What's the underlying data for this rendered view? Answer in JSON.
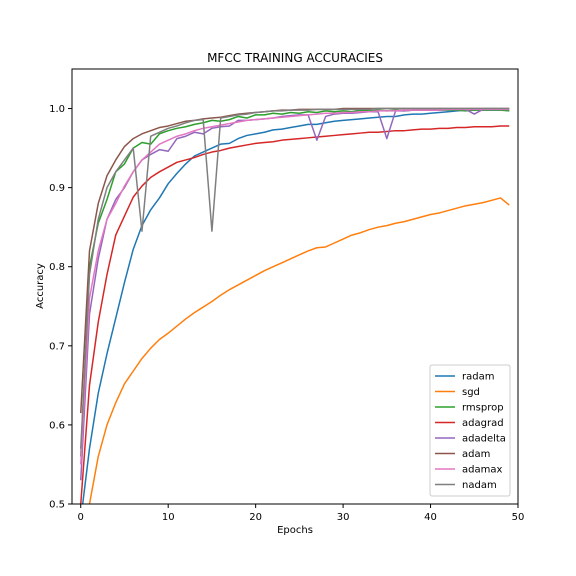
{
  "chart_data": {
    "type": "line",
    "title": "MFCC TRAINING ACCURACIES",
    "xlabel": "Epochs",
    "ylabel": "Accuracy",
    "xlim": [
      -1,
      50
    ],
    "ylim": [
      0.5,
      1.05
    ],
    "xticks": [
      0,
      10,
      20,
      30,
      40,
      50
    ],
    "yticks": [
      0.5,
      0.6,
      0.7,
      0.8,
      0.9,
      1.0
    ],
    "grid": false,
    "legend_position": "bottom-right",
    "series": [
      {
        "name": "radam",
        "color": "#1f77b4",
        "x": [
          0,
          1,
          2,
          3,
          4,
          5,
          6,
          7,
          8,
          9,
          10,
          11,
          12,
          13,
          14,
          15,
          16,
          17,
          18,
          19,
          20,
          21,
          22,
          23,
          24,
          25,
          26,
          27,
          28,
          29,
          30,
          31,
          32,
          33,
          34,
          35,
          36,
          37,
          38,
          39,
          40,
          41,
          42,
          43,
          44,
          45,
          46,
          47,
          48,
          49
        ],
        "values": [
          0.48,
          0.57,
          0.64,
          0.69,
          0.735,
          0.78,
          0.822,
          0.852,
          0.872,
          0.887,
          0.905,
          0.918,
          0.93,
          0.94,
          0.945,
          0.95,
          0.955,
          0.956,
          0.962,
          0.966,
          0.968,
          0.97,
          0.973,
          0.974,
          0.976,
          0.978,
          0.98,
          0.98,
          0.982,
          0.984,
          0.985,
          0.986,
          0.987,
          0.988,
          0.989,
          0.99,
          0.99,
          0.992,
          0.993,
          0.993,
          0.994,
          0.995,
          0.996,
          0.997,
          0.998,
          0.998,
          0.998,
          0.998,
          0.998,
          0.998
        ]
      },
      {
        "name": "sgd",
        "color": "#ff7f0e",
        "x": [
          0,
          1,
          2,
          3,
          4,
          5,
          6,
          7,
          8,
          9,
          10,
          11,
          12,
          13,
          14,
          15,
          16,
          17,
          18,
          19,
          20,
          21,
          22,
          23,
          24,
          25,
          26,
          27,
          28,
          29,
          30,
          31,
          32,
          33,
          34,
          35,
          36,
          37,
          38,
          39,
          40,
          41,
          42,
          43,
          44,
          45,
          46,
          47,
          48,
          49
        ],
        "values": [
          0.43,
          0.5,
          0.56,
          0.6,
          0.628,
          0.652,
          0.668,
          0.684,
          0.697,
          0.708,
          0.716,
          0.725,
          0.734,
          0.742,
          0.749,
          0.756,
          0.764,
          0.771,
          0.777,
          0.783,
          0.789,
          0.795,
          0.8,
          0.805,
          0.81,
          0.815,
          0.82,
          0.824,
          0.825,
          0.83,
          0.835,
          0.84,
          0.843,
          0.847,
          0.85,
          0.852,
          0.855,
          0.857,
          0.86,
          0.863,
          0.866,
          0.868,
          0.871,
          0.874,
          0.877,
          0.879,
          0.881,
          0.884,
          0.887,
          0.878
        ]
      },
      {
        "name": "rmsprop",
        "color": "#2ca02c",
        "x": [
          0,
          1,
          2,
          3,
          4,
          5,
          6,
          7,
          8,
          9,
          10,
          11,
          12,
          13,
          14,
          15,
          16,
          17,
          18,
          19,
          20,
          21,
          22,
          23,
          24,
          25,
          26,
          27,
          28,
          29,
          30,
          31,
          32,
          33,
          34,
          35,
          36,
          37,
          38,
          39,
          40,
          41,
          42,
          43,
          44,
          45,
          46,
          47,
          48,
          49
        ],
        "values": [
          0.56,
          0.8,
          0.855,
          0.885,
          0.92,
          0.93,
          0.95,
          0.957,
          0.955,
          0.968,
          0.972,
          0.975,
          0.977,
          0.98,
          0.982,
          0.985,
          0.984,
          0.986,
          0.99,
          0.988,
          0.992,
          0.992,
          0.994,
          0.993,
          0.995,
          0.994,
          0.996,
          0.995,
          0.997,
          0.996,
          0.997,
          0.996,
          0.998,
          0.997,
          0.998,
          0.997,
          0.998,
          0.997,
          0.998,
          0.998,
          0.998,
          0.998,
          0.998,
          0.998,
          0.997,
          0.998,
          0.998,
          0.998,
          0.998,
          0.997
        ]
      },
      {
        "name": "adagrad",
        "color": "#d62728",
        "x": [
          0,
          1,
          2,
          3,
          4,
          5,
          6,
          7,
          8,
          9,
          10,
          11,
          12,
          13,
          14,
          15,
          16,
          17,
          18,
          19,
          20,
          21,
          22,
          23,
          24,
          25,
          26,
          27,
          28,
          29,
          30,
          31,
          32,
          33,
          34,
          35,
          36,
          37,
          38,
          39,
          40,
          41,
          42,
          43,
          44,
          45,
          46,
          47,
          48,
          49
        ],
        "values": [
          0.5,
          0.65,
          0.73,
          0.79,
          0.84,
          0.864,
          0.888,
          0.902,
          0.913,
          0.92,
          0.926,
          0.932,
          0.935,
          0.938,
          0.942,
          0.945,
          0.947,
          0.95,
          0.952,
          0.954,
          0.956,
          0.957,
          0.958,
          0.96,
          0.961,
          0.962,
          0.963,
          0.964,
          0.965,
          0.966,
          0.967,
          0.968,
          0.969,
          0.97,
          0.97,
          0.971,
          0.972,
          0.972,
          0.973,
          0.974,
          0.974,
          0.975,
          0.975,
          0.976,
          0.976,
          0.977,
          0.977,
          0.977,
          0.978,
          0.978
        ]
      },
      {
        "name": "adadelta",
        "color": "#9467bd",
        "x": [
          0,
          1,
          2,
          3,
          4,
          5,
          6,
          7,
          8,
          9,
          10,
          11,
          12,
          13,
          14,
          15,
          16,
          17,
          18,
          19,
          20,
          21,
          22,
          23,
          24,
          25,
          26,
          27,
          28,
          29,
          30,
          31,
          32,
          33,
          34,
          35,
          36,
          37,
          38,
          39,
          40,
          41,
          42,
          43,
          44,
          45,
          46,
          47,
          48,
          49
        ],
        "values": [
          0.53,
          0.74,
          0.81,
          0.86,
          0.885,
          0.9,
          0.92,
          0.935,
          0.942,
          0.948,
          0.946,
          0.962,
          0.965,
          0.97,
          0.968,
          0.975,
          0.977,
          0.978,
          0.985,
          0.985,
          0.986,
          0.987,
          0.988,
          0.99,
          0.991,
          0.992,
          0.992,
          0.96,
          0.99,
          0.993,
          0.994,
          0.994,
          0.995,
          0.996,
          0.996,
          0.962,
          0.997,
          0.997,
          0.998,
          0.998,
          0.998,
          0.998,
          0.999,
          0.999,
          0.999,
          0.993,
          0.999,
          0.999,
          0.999,
          0.999
        ]
      },
      {
        "name": "adam",
        "color": "#8c564b",
        "x": [
          0,
          1,
          2,
          3,
          4,
          5,
          6,
          7,
          8,
          9,
          10,
          11,
          12,
          13,
          14,
          15,
          16,
          17,
          18,
          19,
          20,
          21,
          22,
          23,
          24,
          25,
          26,
          27,
          28,
          29,
          30,
          31,
          32,
          33,
          34,
          35,
          36,
          37,
          38,
          39,
          40,
          41,
          42,
          43,
          44,
          45,
          46,
          47,
          48,
          49
        ],
        "values": [
          0.615,
          0.82,
          0.88,
          0.915,
          0.935,
          0.952,
          0.962,
          0.968,
          0.972,
          0.976,
          0.978,
          0.981,
          0.984,
          0.985,
          0.987,
          0.988,
          0.989,
          0.991,
          0.993,
          0.994,
          0.995,
          0.996,
          0.997,
          0.998,
          0.998,
          0.999,
          0.999,
          0.999,
          0.999,
          0.999,
          1.0,
          1.0,
          1.0,
          1.0,
          1.0,
          1.0,
          1.0,
          1.0,
          1.0,
          1.0,
          1.0,
          1.0,
          1.0,
          1.0,
          1.0,
          1.0,
          1.0,
          1.0,
          1.0,
          1.0
        ]
      },
      {
        "name": "adamax",
        "color": "#e377c2",
        "x": [
          0,
          1,
          2,
          3,
          4,
          5,
          6,
          7,
          8,
          9,
          10,
          11,
          12,
          13,
          14,
          15,
          16,
          17,
          18,
          19,
          20,
          21,
          22,
          23,
          24,
          25,
          26,
          27,
          28,
          29,
          30,
          31,
          32,
          33,
          34,
          35,
          36,
          37,
          38,
          39,
          40,
          41,
          42,
          43,
          44,
          45,
          46,
          47,
          48,
          49
        ],
        "values": [
          0.55,
          0.76,
          0.82,
          0.86,
          0.88,
          0.902,
          0.92,
          0.935,
          0.945,
          0.955,
          0.96,
          0.965,
          0.968,
          0.972,
          0.975,
          0.977,
          0.979,
          0.981,
          0.983,
          0.985,
          0.986,
          0.987,
          0.988,
          0.989,
          0.99,
          0.991,
          0.992,
          0.993,
          0.994,
          0.994,
          0.995,
          0.995,
          0.996,
          0.996,
          0.997,
          0.997,
          0.997,
          0.998,
          0.998,
          0.998,
          0.998,
          0.998,
          0.999,
          0.999,
          0.999,
          0.999,
          0.999,
          0.999,
          0.999,
          0.999
        ]
      },
      {
        "name": "nadam",
        "color": "#7f7f7f",
        "x": [
          0,
          1,
          2,
          3,
          4,
          5,
          6,
          7,
          8,
          9,
          10,
          11,
          12,
          13,
          14,
          15,
          16,
          17,
          18,
          19,
          20,
          21,
          22,
          23,
          24,
          25,
          26,
          27,
          28,
          29,
          30,
          31,
          32,
          33,
          34,
          35,
          36,
          37,
          38,
          39,
          40,
          41,
          42,
          43,
          44,
          45,
          46,
          47,
          48,
          49
        ],
        "values": [
          0.57,
          0.79,
          0.86,
          0.9,
          0.92,
          0.935,
          0.95,
          0.845,
          0.965,
          0.97,
          0.975,
          0.978,
          0.982,
          0.985,
          0.986,
          0.845,
          0.988,
          0.99,
          0.992,
          0.993,
          0.995,
          0.996,
          0.997,
          0.997,
          0.998,
          0.998,
          0.998,
          0.999,
          0.999,
          0.999,
          0.999,
          0.999,
          0.999,
          0.999,
          1.0,
          1.0,
          1.0,
          1.0,
          1.0,
          1.0,
          1.0,
          1.0,
          1.0,
          1.0,
          1.0,
          1.0,
          1.0,
          1.0,
          1.0,
          1.0
        ]
      }
    ]
  }
}
